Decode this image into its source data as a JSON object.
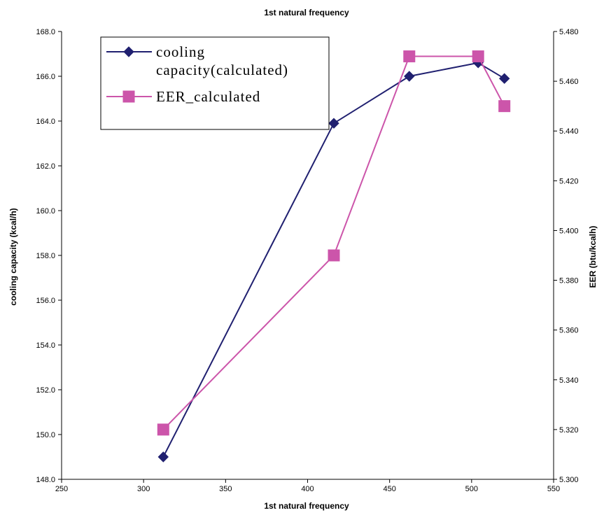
{
  "chart_data": {
    "type": "line",
    "title": "1st natural frequency",
    "xlabel": "1st natural frequency",
    "ylabel": "cooling capacity (kcal/h)",
    "y2label": "EER (btu/kcalh)",
    "xlim": [
      250,
      550
    ],
    "ylim": [
      148.0,
      168.0
    ],
    "y2lim": [
      5.3,
      5.48
    ],
    "x_ticks": [
      "250",
      "300",
      "350",
      "400",
      "450",
      "500",
      "550"
    ],
    "y_ticks": [
      "148.0",
      "150.0",
      "152.0",
      "154.0",
      "156.0",
      "158.0",
      "160.0",
      "162.0",
      "164.0",
      "166.0",
      "168.0"
    ],
    "y2_ticks": [
      "5.300",
      "5.320",
      "5.340",
      "5.360",
      "5.380",
      "5.400",
      "5.420",
      "5.440",
      "5.460",
      "5.480"
    ],
    "grid": false,
    "legend_position": "top-left",
    "series": [
      {
        "name": "cooling capacity(calculated)",
        "legend_lines": [
          "cooling",
          "capacity(calculated)"
        ],
        "axis": "left",
        "marker": "diamond",
        "color": "#202070",
        "x": [
          312,
          416,
          462,
          504,
          520
        ],
        "y": [
          149.0,
          163.9,
          166.0,
          166.6,
          165.9
        ]
      },
      {
        "name": "EER_calculated",
        "legend_lines": [
          "EER_calculated"
        ],
        "axis": "right",
        "marker": "square",
        "color": "#CC55AA",
        "x": [
          312,
          416,
          462,
          504,
          520
        ],
        "y": [
          5.32,
          5.39,
          5.47,
          5.47,
          5.45
        ]
      }
    ]
  }
}
